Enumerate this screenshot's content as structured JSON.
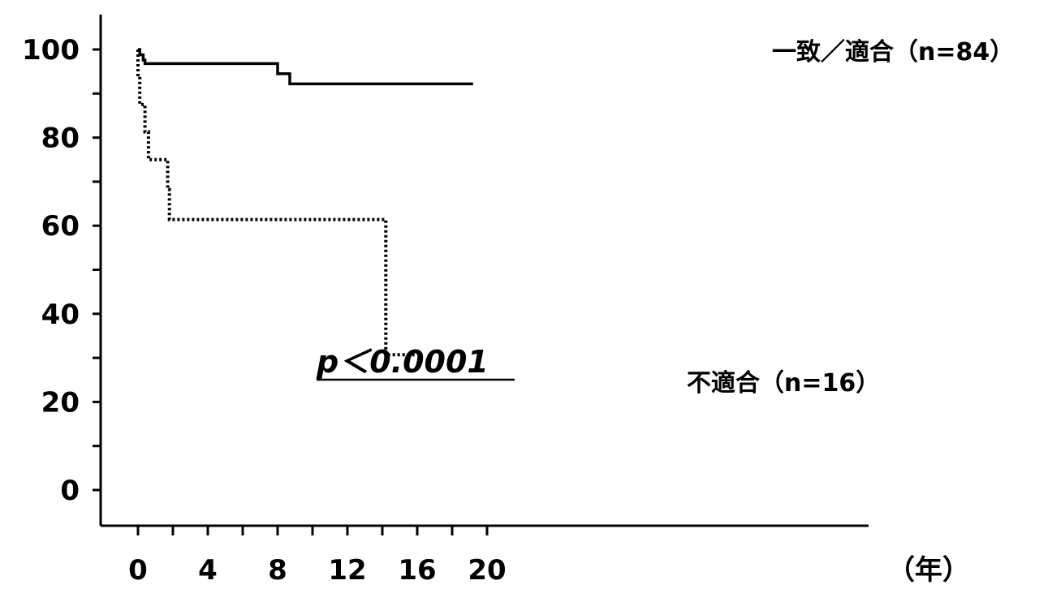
{
  "chart_data": {
    "type": "line",
    "step": true,
    "x_unit_label": "（年）",
    "x_ticks": [
      0,
      4,
      8,
      12,
      16,
      20
    ],
    "y_ticks": [
      0,
      20,
      40,
      60,
      80,
      100
    ],
    "xlim": [
      -1,
      21
    ],
    "ylim": [
      -5,
      110
    ],
    "grid": false,
    "annotation": "p＜0.0001",
    "series": [
      {
        "name": "一致／適合（n=84）",
        "style": "solid",
        "color": "#000000",
        "points": [
          [
            0,
            100
          ],
          [
            0.1,
            100
          ],
          [
            0.1,
            98.8
          ],
          [
            0.3,
            98.8
          ],
          [
            0.3,
            97.6
          ],
          [
            0.4,
            97.6
          ],
          [
            0.4,
            96.8
          ],
          [
            8.0,
            96.8
          ],
          [
            8.0,
            94.5
          ],
          [
            8.7,
            94.5
          ],
          [
            8.7,
            92.2
          ],
          [
            19.2,
            92.2
          ]
        ]
      },
      {
        "name": "不適合（n=16）",
        "style": "dotted",
        "color": "#000000",
        "points": [
          [
            0,
            100
          ],
          [
            0,
            93.8
          ],
          [
            0.1,
            93.8
          ],
          [
            0.1,
            87.5
          ],
          [
            0.4,
            87.5
          ],
          [
            0.4,
            81.3
          ],
          [
            0.6,
            81.3
          ],
          [
            0.6,
            75.0
          ],
          [
            1.7,
            75.0
          ],
          [
            1.7,
            68.2
          ],
          [
            1.8,
            68.2
          ],
          [
            1.8,
            61.4
          ],
          [
            14.2,
            61.4
          ],
          [
            14.2,
            30.7
          ],
          [
            15.9,
            30.7
          ]
        ]
      }
    ]
  }
}
